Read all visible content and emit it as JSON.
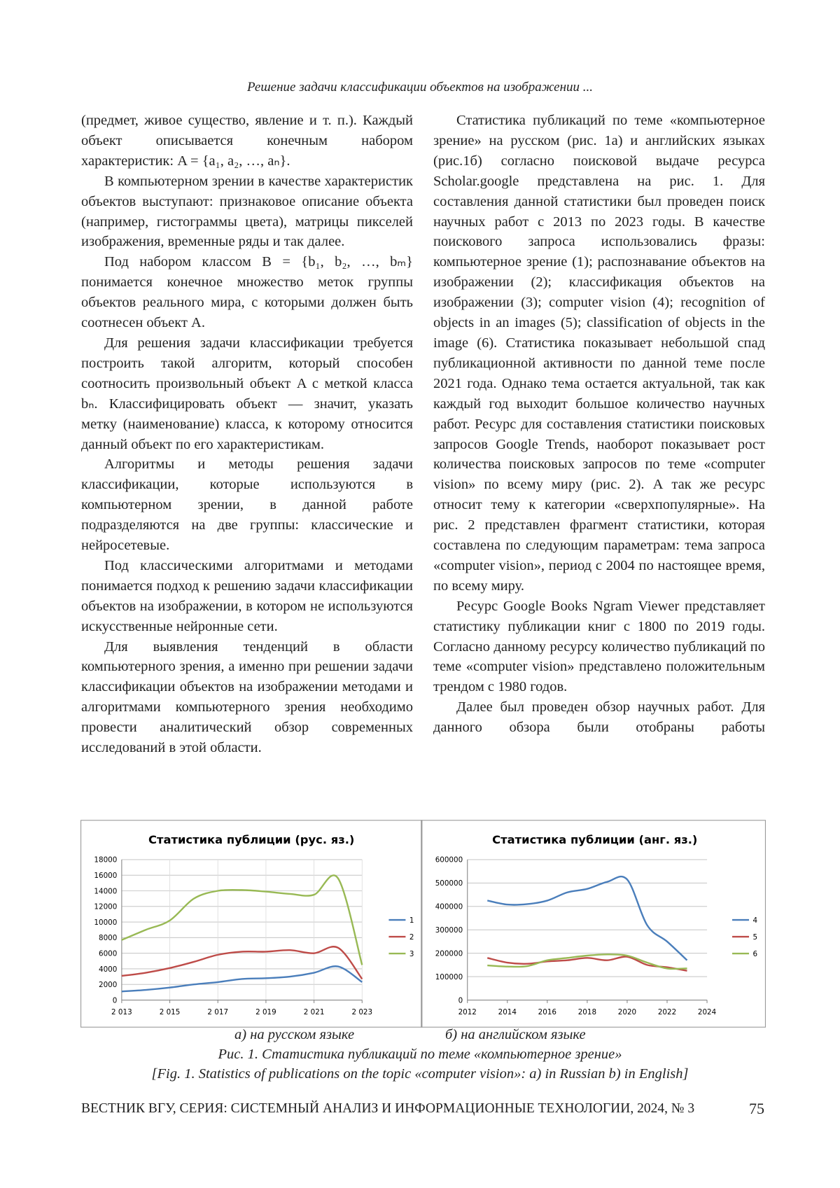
{
  "header": {
    "title": "Решение задачи классификации объектов на изображении ..."
  },
  "columns": [
    [
      "(предмет, живое существо, явление и т. п.). Каждый объект описывается конечным набором характеристик: A = {a₁, a₂, …, aₙ}.",
      "В компьютерном зрении в качестве характеристик объектов выступают: признаковое описание объекта (например, гистограммы цвета), матрицы пикселей изображения, временные ряды и так далее.",
      "Под набором классом B = {b₁, b₂, …, bₘ} понимается конечное множество меток группы объектов реального мира, с которыми должен быть соотнесен объект A.",
      "Для решения задачи классификации требуется построить такой алгоритм, который способен соотносить произвольный объект A с меткой класса bₙ. Классифицировать объект — значит, указать метку (наименование) класса, к которому относится данный объект по его характеристикам.",
      "Алгоритмы и методы решения задачи классификации, которые используются в компьютерном зрении, в данной работе подразделяются на две группы: классические и нейросетевые.",
      "Под классическими алгоритмами и методами понимается подход к решению задачи классификации объектов на изображении, в котором не используются искусственные нейронные сети.",
      "Для выявления тенденций в области компьютерного зрения, а именно при решении задачи классификации объектов на изображении методами и алгоритмами компьютерного зрения необходимо провести аналитический обзор современных исследований в этой области."
    ],
    [
      "Статистика публикаций по теме «компьютерное зрение» на русском (рис. 1а) и английских языках (рис.1б) согласно поисковой выдаче ресурса Scholar.google представлена на рис. 1. Для составления данной статистики был проведен поиск научных работ с 2013 по 2023 годы. В качестве поискового запроса использовались фразы: компьютерное зрение (1); распознавание объектов на изображении (2); классификация объектов на изображении (3); computer vision (4); recognition of objects in an images (5); classification of objects in the image (6). Статистика показывает небольшой спад публикационной активности по данной теме после 2021 года. Однако тема остается актуальной, так как каждый год выходит большое количество научных работ. Ресурс для составления статистики поисковых запросов Google Trends, наоборот показывает рост количества поисковых запросов по теме «computer vision» по всему миру (рис. 2). А так же ресурс относит тему к категории «сверхпопулярные». На рис. 2 представлен фрагмент статистики, которая составлена по следующим параметрам: тема запроса «computer vision», период с 2004 по настоящее время, по всему миру.",
      "Ресурс Google Books Ngram Viewer представляет статистику публикации книг с 1800 по 2019 годы. Согласно данному ресурсу количество публикаций по теме «computer vision» представлено положительным трендом с 1980 годов.",
      "Далее был проведен обзор научных работ. Для данного обзора были отобраны работы"
    ]
  ],
  "chart_data": [
    {
      "type": "line",
      "title": "Статистика публиции (рус. яз.)",
      "x": [
        2013,
        2014,
        2015,
        2016,
        2017,
        2018,
        2019,
        2020,
        2021,
        2022,
        2023
      ],
      "xlim": [
        2013,
        2023
      ],
      "xticks": [
        {
          "value": 2013,
          "label": "2 013"
        },
        {
          "value": 2015,
          "label": "2 015"
        },
        {
          "value": 2017,
          "label": "2 017"
        },
        {
          "value": 2019,
          "label": "2 019"
        },
        {
          "value": 2021,
          "label": "2 021"
        },
        {
          "value": 2023,
          "label": "2 023"
        }
      ],
      "ylim": [
        0,
        18000
      ],
      "yticks": [
        0,
        2000,
        4000,
        6000,
        8000,
        10000,
        12000,
        14000,
        16000,
        18000
      ],
      "grid": true,
      "xgrid": true,
      "legend": "right",
      "series": [
        {
          "name": "1",
          "color": "#4a7ebb",
          "values": [
            1100,
            1300,
            1600,
            2000,
            2300,
            2700,
            2800,
            3000,
            3500,
            4300,
            2300
          ]
        },
        {
          "name": "2",
          "color": "#be4b48",
          "values": [
            3100,
            3500,
            4100,
            4900,
            5800,
            6200,
            6200,
            6400,
            6000,
            6700,
            2700
          ]
        },
        {
          "name": "3",
          "color": "#98b954",
          "values": [
            7700,
            9000,
            10200,
            13000,
            14000,
            14100,
            13900,
            13600,
            13500,
            15600,
            4500
          ]
        }
      ]
    },
    {
      "type": "line",
      "title": "Статистика публиции (анг. яз.)",
      "x": [
        2013,
        2014,
        2015,
        2016,
        2017,
        2018,
        2019,
        2020,
        2021,
        2022,
        2023
      ],
      "xlim": [
        2012,
        2024
      ],
      "xticks": [
        2012,
        2014,
        2016,
        2018,
        2020,
        2022,
        2024
      ],
      "ylim": [
        0,
        600000
      ],
      "yticks": [
        0,
        100000,
        200000,
        300000,
        400000,
        500000,
        600000
      ],
      "grid": true,
      "xgrid": false,
      "legend": "right",
      "series": [
        {
          "name": "4",
          "color": "#4a7ebb",
          "values": [
            425000,
            408000,
            410000,
            425000,
            460000,
            475000,
            505000,
            515000,
            320000,
            250000,
            170000
          ]
        },
        {
          "name": "5",
          "color": "#be4b48",
          "values": [
            180000,
            160000,
            155000,
            165000,
            170000,
            180000,
            170000,
            185000,
            150000,
            140000,
            125000
          ]
        },
        {
          "name": "6",
          "color": "#98b954",
          "values": [
            148000,
            143000,
            145000,
            170000,
            180000,
            190000,
            195000,
            190000,
            160000,
            135000,
            135000
          ]
        }
      ]
    }
  ],
  "figure": {
    "subcaptions": [
      "а) на русском языке",
      "б) на английском языке"
    ],
    "caption": "Рис. 1. Статистика публикаций по теме «компьютерное зрение»",
    "caption_en": "[Fig. 1. Statistics of publications on the topic «computer vision»: a) in Russian b) in English]"
  },
  "footer": {
    "journal": "ВЕСТНИК ВГУ, СЕРИЯ: СИСТЕМНЫЙ АНАЛИЗ И ИНФОРМАЦИОННЫЕ ТЕХНОЛОГИИ, 2024, № 3",
    "page": "75"
  }
}
